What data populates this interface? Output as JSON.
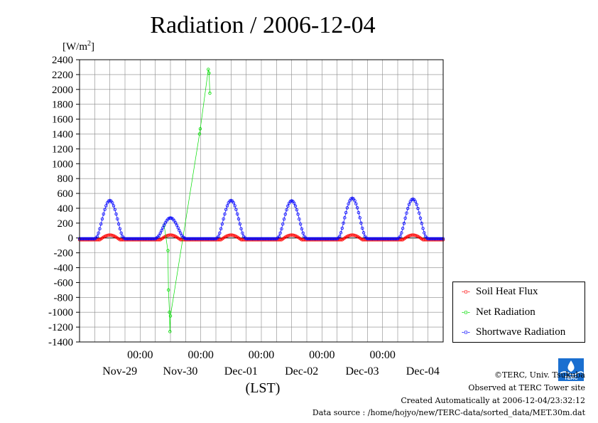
{
  "chart_data": {
    "type": "scatter",
    "title": "Radiation / 2006-12-04",
    "ylabel": "[W/m2]",
    "xlabel": "(LST)",
    "ylim": [
      -1400,
      2400
    ],
    "yticks": [
      2400,
      2200,
      2000,
      1800,
      1600,
      1400,
      1200,
      1000,
      800,
      600,
      400,
      200,
      0,
      -200,
      -400,
      -600,
      -800,
      -1000,
      -1200,
      -1400
    ],
    "xlim": [
      0,
      144
    ],
    "xtick_time_label": "00:00",
    "xtick_date_labels": [
      "Nov-29",
      "Nov-30",
      "Dec-01",
      "Dec-02",
      "Dec-03",
      "Dec-04"
    ],
    "xtick_hours": [
      24,
      48,
      72,
      96,
      120
    ],
    "grid": true,
    "legend_position": "bottom-right",
    "series": [
      {
        "name": "Soil Heat Flux",
        "color": "#ff0000",
        "marker": "circle"
      },
      {
        "name": "Net Radiation",
        "color": "#00dd00",
        "marker": "circle"
      },
      {
        "name": "Shortwave Radiation",
        "color": "#0000ff",
        "marker": "circle"
      }
    ],
    "shortwave_daily_peaks": [
      505,
      270,
      505,
      500,
      535,
      525
    ],
    "net_radiation_points": [
      [
        33.5,
        170
      ],
      [
        35.0,
        -170
      ],
      [
        35.2,
        -700
      ],
      [
        35.6,
        -1000
      ],
      [
        35.8,
        -1260
      ],
      [
        36.0,
        -1050
      ],
      [
        47.5,
        1400
      ],
      [
        47.8,
        1470
      ],
      [
        51.0,
        2270
      ],
      [
        51.3,
        2220
      ],
      [
        51.6,
        1950
      ]
    ]
  },
  "footer": {
    "copyright": "©TERC, Univ. Tsukuba",
    "observed": "Observed at TERC Tower site",
    "created": "Created Automatically at 2006-12-04/23:32:12",
    "source": "Data source : /home/hojyo/new/TERC-data/sorted_data/MET.30m.dat"
  },
  "logo_text": "TERC"
}
